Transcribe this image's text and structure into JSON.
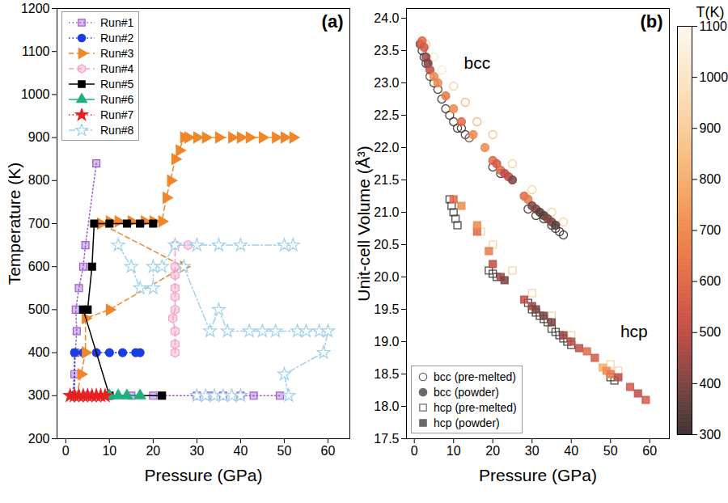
{
  "chart_data": [
    {
      "type": "line",
      "title": "(a)",
      "x_label": "Pressure (GPa)",
      "y_label": "Temperature (K)",
      "xlim": [
        -2,
        65
      ],
      "xticks": [
        0,
        10,
        20,
        30,
        40,
        50,
        60
      ],
      "ylim": [
        200,
        1200
      ],
      "yticks": [
        200,
        300,
        400,
        500,
        600,
        700,
        800,
        900,
        1000,
        1100,
        1200
      ],
      "legend": "top-left",
      "series": [
        {
          "name": "Run#1",
          "color": "#9b59d0",
          "marker": "square_half",
          "line_style": "dotted",
          "x": [
            1.5,
            2,
            2.2,
            2.5,
            2.3,
            3,
            4,
            4.5,
            7,
            null,
            2,
            5,
            10,
            15,
            20,
            22,
            30,
            33,
            36,
            40,
            43,
            49
          ],
          "values": [
            300,
            350,
            400,
            450,
            500,
            550,
            600,
            650,
            840,
            null,
            300,
            300,
            300,
            300,
            300,
            300,
            300,
            300,
            300,
            300,
            300,
            300
          ]
        },
        {
          "name": "Run#2",
          "color": "#1a3de0",
          "marker": "circle",
          "line_style": "dotted",
          "x": [
            2,
            2,
            4,
            7,
            10,
            13,
            16,
            17
          ],
          "values": [
            300,
            400,
            400,
            400,
            400,
            400,
            400,
            400
          ]
        },
        {
          "name": "Run#3",
          "color": "#f0862a",
          "marker": "triangle_right",
          "line_style": "dashed",
          "x": [
            2.5,
            3.5,
            4.5,
            4.5,
            10,
            27,
            8,
            10,
            12,
            15,
            18,
            20,
            22,
            23,
            24,
            25,
            26,
            27,
            28,
            30,
            32,
            35,
            38,
            40,
            42,
            45,
            48,
            50,
            52
          ],
          "values": [
            300,
            350,
            400,
            480,
            500,
            600,
            700,
            705,
            705,
            705,
            705,
            705,
            705,
            760,
            800,
            850,
            870,
            900,
            900,
            900,
            900,
            900,
            900,
            900,
            900,
            900,
            900,
            900,
            900
          ]
        },
        {
          "name": "Run#4",
          "color": "#f5a0c8",
          "marker": "hexagon_half",
          "line_style": "dashed",
          "x": [
            25,
            25,
            25,
            24.5,
            25,
            25,
            25,
            25,
            25,
            25,
            28
          ],
          "values": [
            400,
            420,
            450,
            480,
            500,
            530,
            550,
            580,
            600,
            650,
            650
          ]
        },
        {
          "name": "Run#5",
          "color": "#000000",
          "marker": "square",
          "line_style": "solid",
          "x": [
            22,
            10,
            4,
            5,
            6,
            6.5,
            10,
            14,
            17,
            20
          ],
          "values": [
            300,
            300,
            500,
            500,
            600,
            700,
            700,
            700,
            700,
            700
          ]
        },
        {
          "name": "Run#6",
          "color": "#20b080",
          "marker": "triangle",
          "line_style": "solid",
          "x": [
            10,
            12,
            14,
            17
          ],
          "values": [
            300,
            300,
            300,
            300
          ]
        },
        {
          "name": "Run#7",
          "color": "#e82020",
          "marker": "star",
          "line_style": "dotted",
          "x": [
            1,
            2,
            3,
            4,
            5,
            6,
            7,
            8,
            9
          ],
          "values": [
            300,
            300,
            300,
            300,
            300,
            300,
            300,
            300,
            300
          ]
        },
        {
          "name": "Run#8",
          "color": "#9fd0ee",
          "marker": "star_open",
          "line_style": "dash-dot",
          "x": [
            12,
            15,
            17,
            20,
            20,
            22,
            25,
            30,
            35,
            40,
            50,
            52,
            null,
            27,
            33,
            35,
            37,
            42,
            45,
            48,
            53,
            55,
            58,
            60,
            59,
            50,
            51,
            null,
            30,
            32,
            34,
            36,
            38,
            40
          ],
          "values": [
            650,
            600,
            550,
            550,
            600,
            600,
            650,
            650,
            650,
            650,
            650,
            650,
            null,
            600,
            450,
            500,
            450,
            450,
            450,
            450,
            450,
            450,
            450,
            450,
            400,
            350,
            300,
            null,
            300,
            300,
            300,
            300,
            300,
            300
          ]
        }
      ]
    },
    {
      "type": "scatter",
      "title": "(b)",
      "x_label": "Pressure (GPa)",
      "y_label": "Unit-cell Volume (Å³)",
      "xlim": [
        -2,
        65
      ],
      "xticks": [
        0,
        10,
        20,
        30,
        40,
        50,
        60
      ],
      "ylim": [
        17.5,
        24.15
      ],
      "yticks": [
        17.5,
        {
          "value": 18,
          "label": "18.0"
        },
        18.5,
        {
          "value": 19,
          "label": "19.0"
        },
        19.5,
        {
          "value": 20,
          "label": "20.0"
        },
        20.5,
        {
          "value": 21,
          "label": "21.0"
        },
        21.5,
        {
          "value": 22,
          "label": "22.0"
        },
        22.5,
        {
          "value": 23,
          "label": "23.0"
        },
        23.5,
        {
          "value": 24,
          "label": "24.0"
        }
      ],
      "legend": "bottom-left",
      "annotations": [
        {
          "text": "bcc",
          "x": 16,
          "y": 23.3
        },
        {
          "text": "hcp",
          "x": 56,
          "y": 19.15
        }
      ],
      "colorbar": {
        "label": "T(K)",
        "range": [
          300,
          1100
        ],
        "ticks": [
          300,
          400,
          500,
          600,
          700,
          800,
          900,
          1000,
          1100
        ]
      },
      "series": [
        {
          "name": "bcc (pre-melted)",
          "marker": "circle_open",
          "x": [
            1.5,
            2,
            2.5,
            3,
            4,
            5,
            6,
            7,
            8,
            9,
            10,
            11,
            12,
            13,
            14,
            20,
            22,
            29,
            31,
            33,
            35,
            36,
            37,
            38,
            3,
            5,
            7,
            10,
            13,
            16,
            20,
            25,
            30,
            35,
            38
          ],
          "values": [
            23.6,
            23.5,
            23.4,
            23.3,
            23.1,
            23.0,
            22.9,
            22.75,
            22.6,
            22.5,
            22.4,
            22.3,
            22.3,
            22.2,
            22.15,
            21.7,
            21.6,
            21.05,
            20.95,
            20.9,
            20.8,
            20.75,
            20.7,
            20.65,
            23.6,
            23.4,
            23.2,
            22.95,
            22.7,
            22.4,
            22.2,
            21.75,
            21.35,
            21.0,
            20.85
          ],
          "temperature": [
            300,
            300,
            300,
            300,
            350,
            300,
            300,
            300,
            300,
            320,
            300,
            300,
            300,
            320,
            400,
            300,
            300,
            300,
            300,
            300,
            300,
            300,
            300,
            300,
            900,
            1000,
            1000,
            900,
            800,
            800,
            850,
            900,
            900,
            900,
            900
          ]
        },
        {
          "name": "bcc (powder)",
          "marker": "circle",
          "x": [
            1.5,
            2,
            2.5,
            3,
            3.5,
            4,
            5,
            6,
            8,
            10,
            12,
            15,
            18,
            20,
            21,
            22,
            23,
            24,
            25,
            28,
            29,
            30,
            31,
            32,
            33,
            34,
            35,
            36
          ],
          "values": [
            23.6,
            23.65,
            23.55,
            23.4,
            23.3,
            23.2,
            23.1,
            23.0,
            22.8,
            22.6,
            22.4,
            22.2,
            22.0,
            21.8,
            21.75,
            21.65,
            21.6,
            21.55,
            21.5,
            21.25,
            21.2,
            21.1,
            21.05,
            21.0,
            20.95,
            20.9,
            20.85,
            20.8
          ],
          "temperature": [
            500,
            600,
            550,
            450,
            400,
            500,
            700,
            700,
            650,
            700,
            600,
            700,
            700,
            600,
            550,
            600,
            500,
            500,
            400,
            600,
            650,
            400,
            400,
            350,
            350,
            400,
            400,
            350
          ]
        },
        {
          "name": "hcp (pre-melted)",
          "marker": "square_open",
          "x": [
            9,
            9.5,
            10,
            10.5,
            11,
            19,
            20,
            21,
            29,
            30,
            31,
            32,
            33,
            34,
            35,
            36,
            37,
            38,
            39,
            40,
            50,
            51,
            17,
            20,
            25,
            30,
            35,
            40,
            50,
            52
          ],
          "values": [
            21.2,
            21.1,
            21.0,
            20.9,
            20.8,
            20.1,
            20.05,
            20.0,
            19.6,
            19.5,
            19.45,
            19.4,
            19.35,
            19.3,
            19.2,
            19.15,
            19.1,
            19.05,
            19.0,
            18.95,
            18.45,
            18.4,
            20.7,
            20.5,
            20.1,
            19.75,
            19.4,
            19.1,
            18.65,
            18.55
          ],
          "temperature": [
            300,
            300,
            300,
            300,
            300,
            300,
            300,
            300,
            300,
            300,
            300,
            300,
            300,
            300,
            300,
            300,
            300,
            300,
            300,
            300,
            300,
            300,
            900,
            900,
            900,
            900,
            900,
            900,
            900,
            900
          ]
        },
        {
          "name": "hcp (powder)",
          "marker": "square",
          "x": [
            10,
            12,
            16,
            16,
            19,
            20,
            22,
            23,
            28,
            30,
            31,
            33,
            35,
            38,
            40,
            42,
            44,
            46,
            48,
            49,
            50,
            52,
            55,
            57,
            59
          ],
          "values": [
            21.2,
            21.1,
            20.7,
            20.8,
            20.4,
            20.2,
            20.0,
            19.95,
            19.65,
            19.55,
            19.5,
            19.4,
            19.3,
            19.1,
            19.0,
            18.9,
            18.85,
            18.75,
            18.6,
            18.55,
            18.5,
            18.45,
            18.3,
            18.2,
            18.1
          ],
          "temperature": [
            600,
            700,
            600,
            700,
            650,
            500,
            450,
            400,
            500,
            450,
            400,
            400,
            400,
            450,
            500,
            500,
            600,
            550,
            800,
            700,
            650,
            500,
            550,
            500,
            550
          ]
        }
      ]
    }
  ]
}
